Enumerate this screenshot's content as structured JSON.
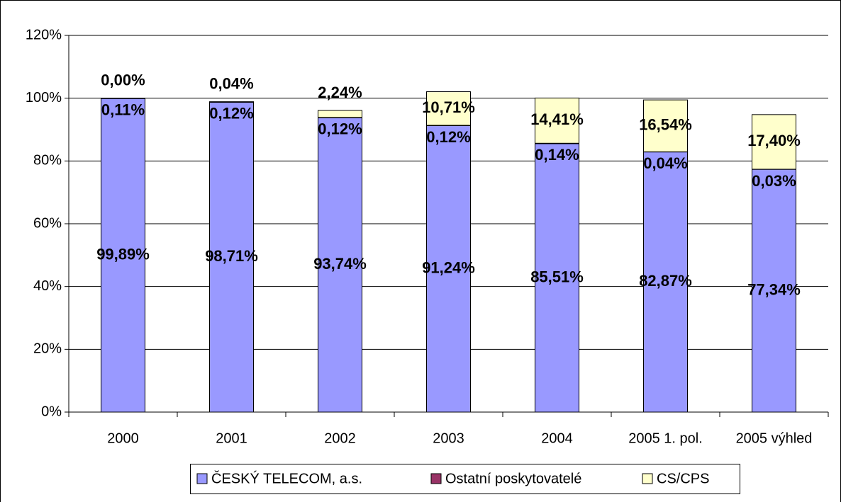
{
  "chart_data": {
    "type": "stacked_bar",
    "categories": [
      "2000",
      "2001",
      "2002",
      "2003",
      "2004",
      "2005 1. pol.",
      "2005 výhled"
    ],
    "series": [
      {
        "name": "ČESKÝ TELECOM, a.s.",
        "color": "#9999ff",
        "values": [
          99.89,
          98.71,
          93.74,
          91.24,
          85.51,
          82.87,
          77.34
        ],
        "value_labels": [
          "99,89%",
          "98,71%",
          "93,74%",
          "91,24%",
          "85,51%",
          "82,87%",
          "77,34%"
        ]
      },
      {
        "name": "Ostatní poskytovatelé",
        "color": "#993366",
        "values": [
          0.11,
          0.12,
          0.12,
          0.12,
          0.14,
          0.04,
          0.03
        ],
        "value_labels": [
          "0,11%",
          "0,12%",
          "0,12%",
          "0,12%",
          "0,14%",
          "0,04%",
          "0,03%"
        ]
      },
      {
        "name": "CS/CPS",
        "color": "#ffffcc",
        "values": [
          0.0,
          0.04,
          2.24,
          10.71,
          14.41,
          16.54,
          17.4
        ],
        "value_labels": [
          "0,00%",
          "0,04%",
          "2,24%",
          "10,71%",
          "14,41%",
          "16,54%",
          "17,40%"
        ]
      }
    ],
    "ylim": [
      0,
      120
    ],
    "yticks": [
      {
        "value": 0,
        "label": "0%"
      },
      {
        "value": 20,
        "label": "20%"
      },
      {
        "value": 40,
        "label": "40%"
      },
      {
        "value": 60,
        "label": "60%"
      },
      {
        "value": 80,
        "label": "80%"
      },
      {
        "value": 100,
        "label": "100%"
      },
      {
        "value": 120,
        "label": "120%"
      }
    ],
    "grid": true,
    "legend": "bottom"
  }
}
